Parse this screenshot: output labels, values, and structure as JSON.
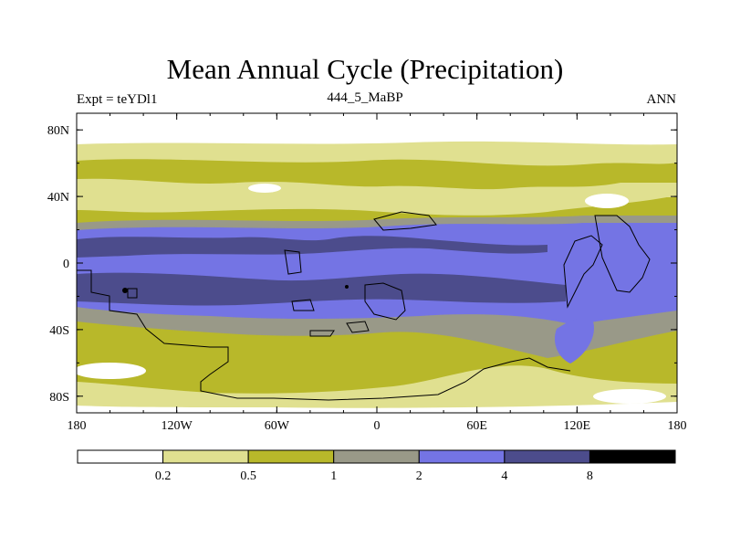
{
  "title": "Mean Annual Cycle (Precipitation)",
  "subtitle_left": "Expt = teYDl1",
  "subtitle_center": "444_5_MaBP",
  "subtitle_right": "ANN",
  "chart_data": {
    "type": "heatmap",
    "title": "Mean Annual Cycle (Precipitation)",
    "x_tick_labels": [
      "180",
      "120W",
      "60W",
      "0",
      "60E",
      "120E",
      "180"
    ],
    "y_tick_labels": [
      "80N",
      "40N",
      "0",
      "40S",
      "80S"
    ],
    "xlim": [
      -180,
      180
    ],
    "ylim": [
      -90,
      90
    ],
    "colorbar": {
      "levels": [
        "0.2",
        "0.5",
        "1",
        "2",
        "4",
        "8"
      ],
      "colors": [
        "#ffffff",
        "#e0e090",
        "#b8b82a",
        "#999988",
        "#7474e4",
        "#4c4c8c",
        "#000000"
      ]
    }
  }
}
